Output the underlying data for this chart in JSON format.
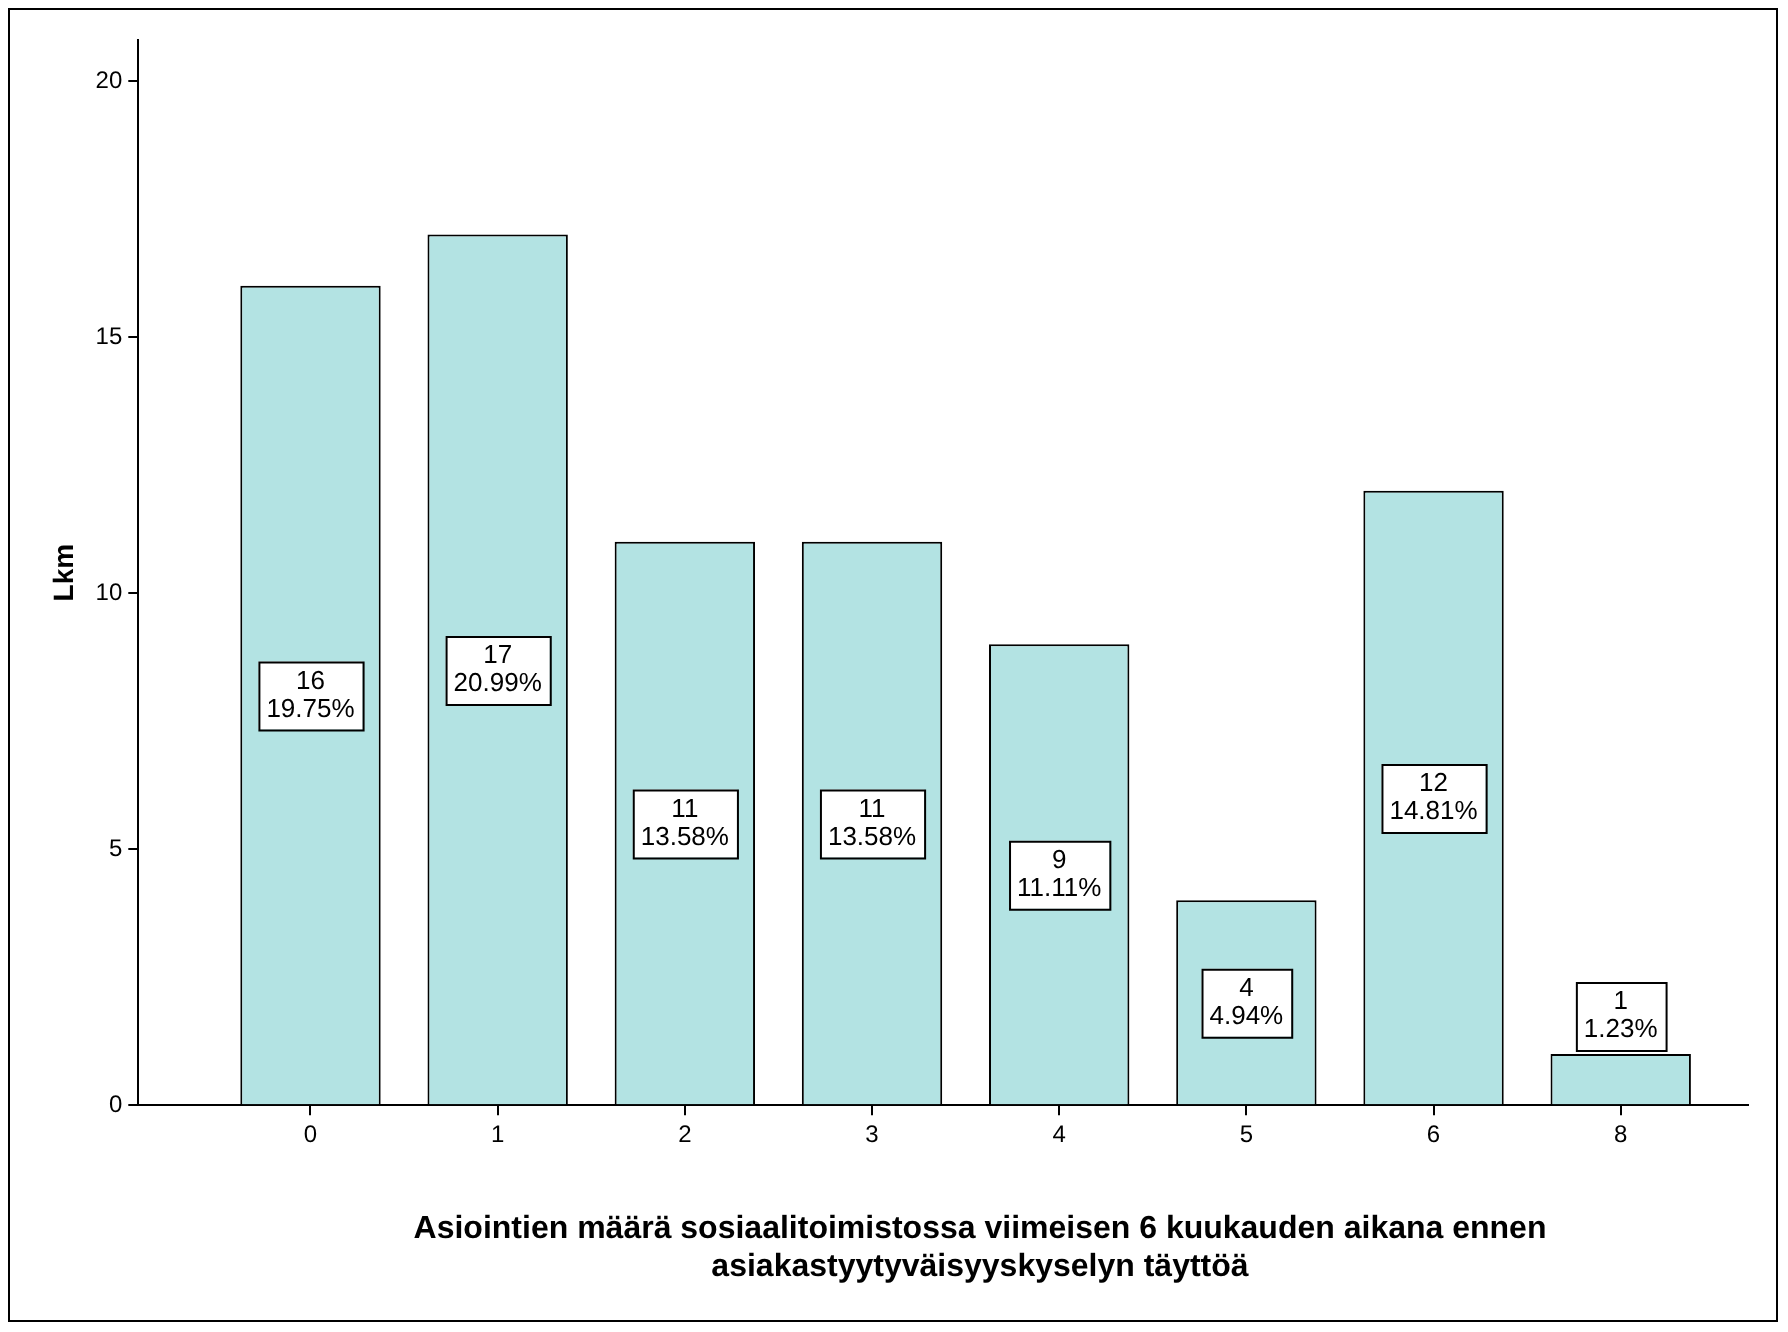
{
  "chart_data": {
    "type": "bar",
    "xlabel": "Asiointien määrä sosiaalitoimistossa viimeisen 6 kuukauden aikana ennen asiakastyytyväisyyskyselyn täyttöä",
    "ylabel": "Lkm",
    "categories": [
      "0",
      "1",
      "2",
      "3",
      "4",
      "5",
      "6",
      "8"
    ],
    "values": [
      16,
      17,
      11,
      11,
      9,
      4,
      12,
      1
    ],
    "value_labels": [
      "16\n19.75%",
      "17\n20.99%",
      "11\n13.58%",
      "11\n13.58%",
      "9\n11.11%",
      "4\n4.94%",
      "12\n14.81%",
      "1\n1.23%"
    ],
    "color": "#b3e3e3",
    "ylim": [
      0,
      20.8
    ],
    "yticks": [
      0,
      5,
      10,
      15,
      20
    ],
    "grid": false,
    "legend": false
  }
}
